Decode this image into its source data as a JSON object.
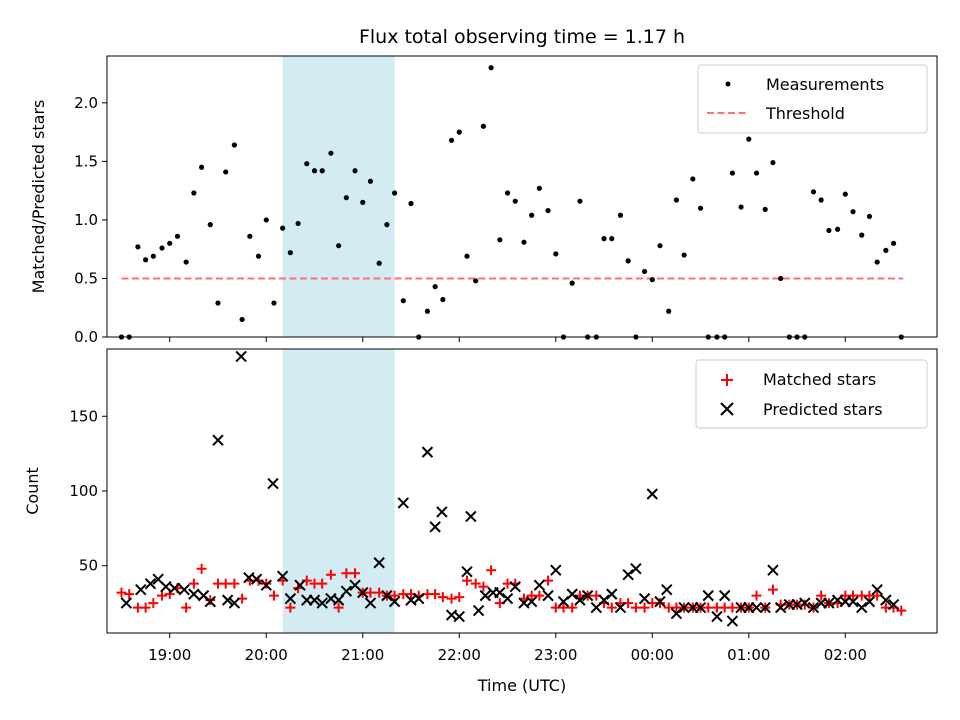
{
  "colors": {
    "measurement": "#000000",
    "threshold": "#ff7070",
    "matched": "#ff0000",
    "predicted": "#000000",
    "span": "#a8d8e6"
  },
  "chart_data": [
    {
      "type": "scatter",
      "title": "Flux total observing time = 1.17 h",
      "ylabel": "Matched/Predicted stars",
      "xlabel": "",
      "xlim": [
        18.35,
        26.95
      ],
      "ylim": [
        0,
        2.4
      ],
      "yticks": [
        0.0,
        0.5,
        1.0,
        1.5,
        2.0
      ],
      "ytick_labels": [
        "0.0",
        "0.5",
        "1.0",
        "1.5",
        "2.0"
      ],
      "grid": false,
      "legend": {
        "position": "upper right",
        "entries": [
          "Measurements",
          "Threshold"
        ]
      },
      "highlight_span": [
        20.17,
        21.33
      ],
      "threshold": {
        "name": "Threshold",
        "y": 0.5,
        "x": [
          18.5,
          26.6
        ]
      },
      "series": [
        {
          "name": "Measurements",
          "x": [
            18.5,
            18.58,
            18.67,
            18.75,
            18.83,
            18.92,
            19.0,
            19.08,
            19.17,
            19.25,
            19.33,
            19.42,
            19.5,
            19.58,
            19.67,
            19.75,
            19.83,
            19.92,
            20.0,
            20.08,
            20.17,
            20.25,
            20.33,
            20.42,
            20.5,
            20.58,
            20.67,
            20.75,
            20.83,
            20.92,
            21.0,
            21.08,
            21.17,
            21.25,
            21.33,
            21.42,
            21.5,
            21.58,
            21.67,
            21.75,
            21.83,
            21.92,
            22.0,
            22.08,
            22.17,
            22.25,
            22.33,
            22.42,
            22.5,
            22.58,
            22.67,
            22.75,
            22.83,
            22.92,
            23.0,
            23.08,
            23.17,
            23.25,
            23.33,
            23.42,
            23.5,
            23.58,
            23.67,
            23.75,
            23.83,
            23.92,
            24.0,
            24.08,
            24.17,
            24.25,
            24.33,
            24.42,
            24.5,
            24.58,
            24.67,
            24.75,
            24.83,
            24.92,
            25.0,
            25.08,
            25.17,
            25.25,
            25.33,
            25.42,
            25.5,
            25.58,
            25.67,
            25.75,
            25.83,
            25.92,
            26.0,
            26.08,
            26.17,
            26.25,
            26.33,
            26.42,
            26.5,
            26.58
          ],
          "y": [
            0.0,
            0.0,
            0.77,
            0.66,
            0.69,
            0.76,
            0.8,
            0.86,
            0.64,
            1.23,
            1.45,
            0.96,
            0.29,
            1.41,
            1.64,
            0.15,
            0.86,
            0.69,
            1.0,
            0.29,
            0.93,
            0.72,
            0.97,
            1.48,
            1.42,
            1.42,
            1.57,
            0.78,
            1.19,
            1.42,
            1.15,
            1.33,
            0.63,
            0.96,
            1.23,
            0.31,
            1.14,
            0.0,
            0.22,
            0.43,
            0.32,
            1.68,
            1.75,
            0.69,
            0.48,
            1.8,
            2.3,
            0.83,
            1.23,
            1.16,
            0.81,
            1.04,
            1.27,
            1.08,
            0.71,
            0.0,
            0.46,
            1.16,
            0.0,
            0.0,
            0.84,
            0.84,
            1.04,
            0.65,
            0.0,
            0.56,
            0.49,
            0.78,
            0.22,
            1.17,
            0.7,
            1.35,
            1.1,
            0.0,
            0.0,
            0.0,
            1.4,
            1.11,
            1.69,
            1.4,
            1.09,
            1.49,
            0.5,
            0.0,
            0.0,
            0.0,
            1.24,
            1.17,
            0.91,
            0.92,
            1.22,
            1.07,
            0.87,
            1.03,
            0.64,
            0.74,
            0.8,
            0.0
          ]
        }
      ]
    },
    {
      "type": "scatter",
      "title": "",
      "ylabel": "Count",
      "xlabel": "Time (UTC)",
      "xlim": [
        18.35,
        26.95
      ],
      "ylim": [
        5,
        195
      ],
      "yticks": [
        50,
        100,
        150
      ],
      "ytick_labels": [
        "50",
        "100",
        "150"
      ],
      "xticks": [
        19,
        20,
        21,
        22,
        23,
        24,
        25,
        26
      ],
      "xtick_labels": [
        "19:00",
        "20:00",
        "21:00",
        "22:00",
        "23:00",
        "00:00",
        "01:00",
        "02:00"
      ],
      "grid": false,
      "legend": {
        "position": "upper right",
        "entries": [
          "Matched stars",
          "Predicted stars"
        ]
      },
      "highlight_span": [
        20.17,
        21.33
      ],
      "series": [
        {
          "name": "Matched stars",
          "marker": "plus",
          "x": [
            18.5,
            18.58,
            18.67,
            18.75,
            18.83,
            18.92,
            19.0,
            19.08,
            19.17,
            19.25,
            19.33,
            19.42,
            19.5,
            19.58,
            19.67,
            19.75,
            19.83,
            19.92,
            20.0,
            20.08,
            20.17,
            20.25,
            20.33,
            20.42,
            20.5,
            20.58,
            20.67,
            20.75,
            20.83,
            20.92,
            21.0,
            21.08,
            21.17,
            21.25,
            21.33,
            21.42,
            21.5,
            21.58,
            21.67,
            21.75,
            21.83,
            21.92,
            22.0,
            22.08,
            22.17,
            22.25,
            22.33,
            22.42,
            22.5,
            22.58,
            22.67,
            22.75,
            22.83,
            22.92,
            23.0,
            23.08,
            23.17,
            23.25,
            23.33,
            23.42,
            23.5,
            23.58,
            23.67,
            23.75,
            23.83,
            23.92,
            24.0,
            24.08,
            24.17,
            24.25,
            24.33,
            24.42,
            24.5,
            24.58,
            24.67,
            24.75,
            24.83,
            24.92,
            25.0,
            25.08,
            25.17,
            25.25,
            25.33,
            25.42,
            25.5,
            25.58,
            25.67,
            25.75,
            25.83,
            25.92,
            26.0,
            26.08,
            26.17,
            26.25,
            26.33,
            26.42,
            26.5,
            26.58
          ],
          "y": [
            32,
            31,
            22,
            22,
            25,
            30,
            31,
            35,
            22,
            38,
            48,
            27,
            38,
            38,
            38,
            28,
            40,
            40,
            38,
            30,
            40,
            22,
            35,
            40,
            38,
            38,
            44,
            22,
            45,
            45,
            32,
            32,
            32,
            30,
            30,
            31,
            31,
            30,
            31,
            31,
            29,
            28,
            29,
            40,
            38,
            36,
            47,
            25,
            38,
            38,
            28,
            30,
            30,
            40,
            22,
            22,
            22,
            30,
            30,
            30,
            25,
            22,
            25,
            25,
            22,
            22,
            25,
            25,
            22,
            22,
            22,
            22,
            22,
            22,
            22,
            22,
            22,
            22,
            22,
            30,
            22,
            34,
            24,
            24,
            24,
            24,
            22,
            30,
            25,
            25,
            30,
            30,
            30,
            30,
            30,
            22,
            22,
            20
          ]
        },
        {
          "name": "Predicted stars",
          "marker": "x",
          "x": [
            18.55,
            18.7,
            18.8,
            18.88,
            18.96,
            19.05,
            19.15,
            19.25,
            19.35,
            19.42,
            19.5,
            19.6,
            19.67,
            19.74,
            19.82,
            19.9,
            20.0,
            20.07,
            20.17,
            20.25,
            20.35,
            20.42,
            20.5,
            20.58,
            20.67,
            20.75,
            20.83,
            20.92,
            21.0,
            21.08,
            21.17,
            21.25,
            21.33,
            21.42,
            21.5,
            21.58,
            21.67,
            21.75,
            21.82,
            21.92,
            22.0,
            22.08,
            22.12,
            22.2,
            22.27,
            22.35,
            22.42,
            22.5,
            22.58,
            22.67,
            22.75,
            22.83,
            22.92,
            23.0,
            23.08,
            23.17,
            23.25,
            23.33,
            23.42,
            23.5,
            23.58,
            23.67,
            23.75,
            23.83,
            23.92,
            24.0,
            24.08,
            24.15,
            24.25,
            24.33,
            24.42,
            24.5,
            24.58,
            24.67,
            24.75,
            24.83,
            24.92,
            25.0,
            25.08,
            25.17,
            25.25,
            25.33,
            25.42,
            25.5,
            25.58,
            25.67,
            25.75,
            25.83,
            25.92,
            26.0,
            26.08,
            26.17,
            26.25,
            26.33,
            26.42,
            26.5
          ],
          "y": [
            25,
            34,
            38,
            41,
            36,
            35,
            34,
            31,
            30,
            26,
            134,
            27,
            25,
            190,
            42,
            41,
            37,
            105,
            43,
            28,
            37,
            27,
            27,
            25,
            28,
            27,
            33,
            37,
            32,
            25,
            52,
            30,
            26,
            92,
            27,
            28,
            126,
            76,
            86,
            17,
            16,
            46,
            83,
            20,
            30,
            32,
            32,
            28,
            36,
            25,
            26,
            37,
            30,
            47,
            26,
            31,
            27,
            30,
            22,
            27,
            31,
            22,
            44,
            48,
            28,
            98,
            26,
            34,
            18,
            22,
            22,
            22,
            30,
            16,
            30,
            13,
            22,
            22,
            22,
            22,
            47,
            22,
            24,
            24,
            25,
            22,
            25,
            25,
            27,
            26,
            26,
            22,
            26,
            34,
            27,
            24
          ]
        }
      ]
    }
  ]
}
